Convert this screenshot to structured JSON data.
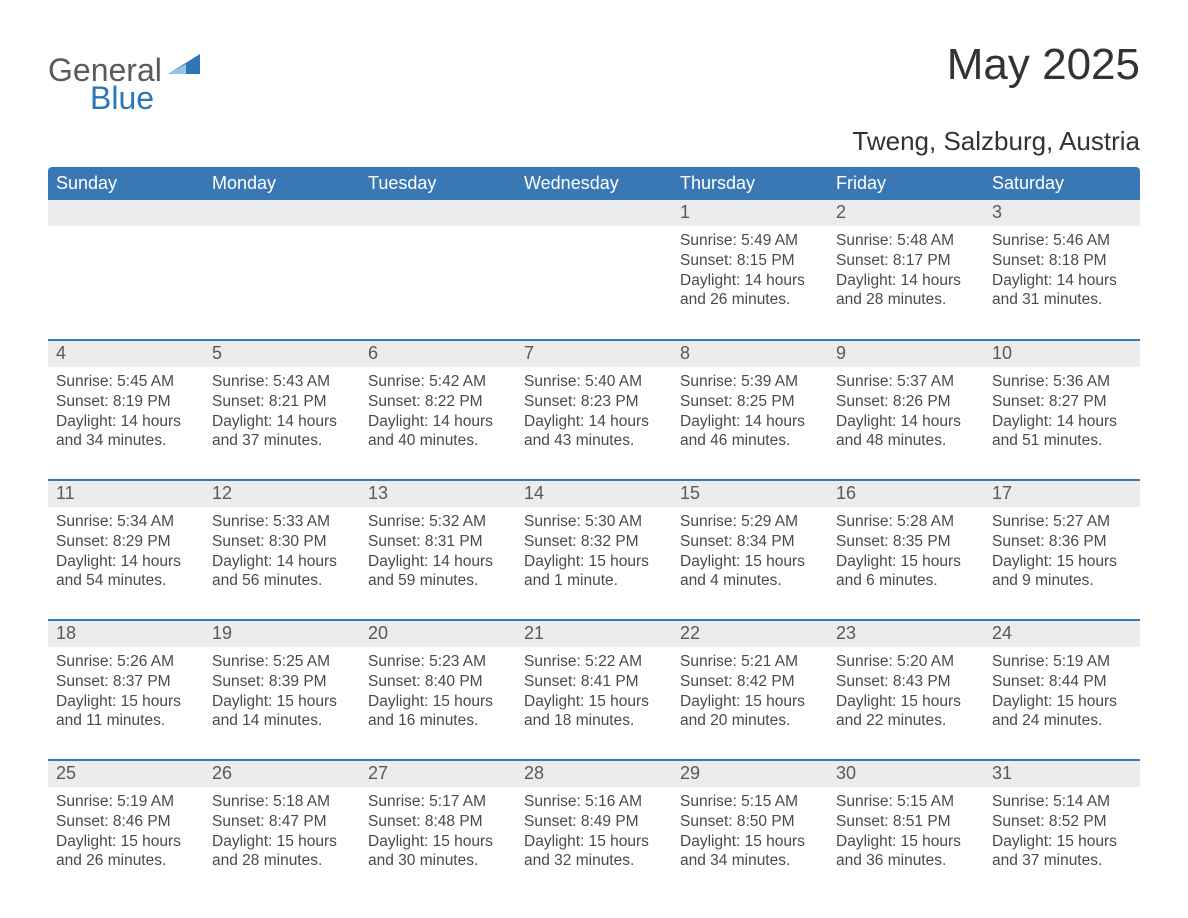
{
  "logo": {
    "general": "General",
    "blue": "Blue",
    "flag_color": "#2e75b6"
  },
  "title": "May 2025",
  "subtitle": "Tweng, Salzburg, Austria",
  "colors": {
    "header_bg": "#3a78b5",
    "header_fg": "#ffffff",
    "daynum_bg": "#ececec",
    "daynum_fg": "#595959",
    "text": "#4a4a4a",
    "rule": "#3a78b5"
  },
  "columns": [
    "Sunday",
    "Monday",
    "Tuesday",
    "Wednesday",
    "Thursday",
    "Friday",
    "Saturday"
  ],
  "weeks": [
    [
      {
        "blank": true
      },
      {
        "blank": true
      },
      {
        "blank": true
      },
      {
        "blank": true
      },
      {
        "day": "1",
        "sunrise": "Sunrise: 5:49 AM",
        "sunset": "Sunset: 8:15 PM",
        "daylight1": "Daylight: 14 hours",
        "daylight2": "and 26 minutes."
      },
      {
        "day": "2",
        "sunrise": "Sunrise: 5:48 AM",
        "sunset": "Sunset: 8:17 PM",
        "daylight1": "Daylight: 14 hours",
        "daylight2": "and 28 minutes."
      },
      {
        "day": "3",
        "sunrise": "Sunrise: 5:46 AM",
        "sunset": "Sunset: 8:18 PM",
        "daylight1": "Daylight: 14 hours",
        "daylight2": "and 31 minutes."
      }
    ],
    [
      {
        "day": "4",
        "sunrise": "Sunrise: 5:45 AM",
        "sunset": "Sunset: 8:19 PM",
        "daylight1": "Daylight: 14 hours",
        "daylight2": "and 34 minutes."
      },
      {
        "day": "5",
        "sunrise": "Sunrise: 5:43 AM",
        "sunset": "Sunset: 8:21 PM",
        "daylight1": "Daylight: 14 hours",
        "daylight2": "and 37 minutes."
      },
      {
        "day": "6",
        "sunrise": "Sunrise: 5:42 AM",
        "sunset": "Sunset: 8:22 PM",
        "daylight1": "Daylight: 14 hours",
        "daylight2": "and 40 minutes."
      },
      {
        "day": "7",
        "sunrise": "Sunrise: 5:40 AM",
        "sunset": "Sunset: 8:23 PM",
        "daylight1": "Daylight: 14 hours",
        "daylight2": "and 43 minutes."
      },
      {
        "day": "8",
        "sunrise": "Sunrise: 5:39 AM",
        "sunset": "Sunset: 8:25 PM",
        "daylight1": "Daylight: 14 hours",
        "daylight2": "and 46 minutes."
      },
      {
        "day": "9",
        "sunrise": "Sunrise: 5:37 AM",
        "sunset": "Sunset: 8:26 PM",
        "daylight1": "Daylight: 14 hours",
        "daylight2": "and 48 minutes."
      },
      {
        "day": "10",
        "sunrise": "Sunrise: 5:36 AM",
        "sunset": "Sunset: 8:27 PM",
        "daylight1": "Daylight: 14 hours",
        "daylight2": "and 51 minutes."
      }
    ],
    [
      {
        "day": "11",
        "sunrise": "Sunrise: 5:34 AM",
        "sunset": "Sunset: 8:29 PM",
        "daylight1": "Daylight: 14 hours",
        "daylight2": "and 54 minutes."
      },
      {
        "day": "12",
        "sunrise": "Sunrise: 5:33 AM",
        "sunset": "Sunset: 8:30 PM",
        "daylight1": "Daylight: 14 hours",
        "daylight2": "and 56 minutes."
      },
      {
        "day": "13",
        "sunrise": "Sunrise: 5:32 AM",
        "sunset": "Sunset: 8:31 PM",
        "daylight1": "Daylight: 14 hours",
        "daylight2": "and 59 minutes."
      },
      {
        "day": "14",
        "sunrise": "Sunrise: 5:30 AM",
        "sunset": "Sunset: 8:32 PM",
        "daylight1": "Daylight: 15 hours",
        "daylight2": "and 1 minute."
      },
      {
        "day": "15",
        "sunrise": "Sunrise: 5:29 AM",
        "sunset": "Sunset: 8:34 PM",
        "daylight1": "Daylight: 15 hours",
        "daylight2": "and 4 minutes."
      },
      {
        "day": "16",
        "sunrise": "Sunrise: 5:28 AM",
        "sunset": "Sunset: 8:35 PM",
        "daylight1": "Daylight: 15 hours",
        "daylight2": "and 6 minutes."
      },
      {
        "day": "17",
        "sunrise": "Sunrise: 5:27 AM",
        "sunset": "Sunset: 8:36 PM",
        "daylight1": "Daylight: 15 hours",
        "daylight2": "and 9 minutes."
      }
    ],
    [
      {
        "day": "18",
        "sunrise": "Sunrise: 5:26 AM",
        "sunset": "Sunset: 8:37 PM",
        "daylight1": "Daylight: 15 hours",
        "daylight2": "and 11 minutes."
      },
      {
        "day": "19",
        "sunrise": "Sunrise: 5:25 AM",
        "sunset": "Sunset: 8:39 PM",
        "daylight1": "Daylight: 15 hours",
        "daylight2": "and 14 minutes."
      },
      {
        "day": "20",
        "sunrise": "Sunrise: 5:23 AM",
        "sunset": "Sunset: 8:40 PM",
        "daylight1": "Daylight: 15 hours",
        "daylight2": "and 16 minutes."
      },
      {
        "day": "21",
        "sunrise": "Sunrise: 5:22 AM",
        "sunset": "Sunset: 8:41 PM",
        "daylight1": "Daylight: 15 hours",
        "daylight2": "and 18 minutes."
      },
      {
        "day": "22",
        "sunrise": "Sunrise: 5:21 AM",
        "sunset": "Sunset: 8:42 PM",
        "daylight1": "Daylight: 15 hours",
        "daylight2": "and 20 minutes."
      },
      {
        "day": "23",
        "sunrise": "Sunrise: 5:20 AM",
        "sunset": "Sunset: 8:43 PM",
        "daylight1": "Daylight: 15 hours",
        "daylight2": "and 22 minutes."
      },
      {
        "day": "24",
        "sunrise": "Sunrise: 5:19 AM",
        "sunset": "Sunset: 8:44 PM",
        "daylight1": "Daylight: 15 hours",
        "daylight2": "and 24 minutes."
      }
    ],
    [
      {
        "day": "25",
        "sunrise": "Sunrise: 5:19 AM",
        "sunset": "Sunset: 8:46 PM",
        "daylight1": "Daylight: 15 hours",
        "daylight2": "and 26 minutes."
      },
      {
        "day": "26",
        "sunrise": "Sunrise: 5:18 AM",
        "sunset": "Sunset: 8:47 PM",
        "daylight1": "Daylight: 15 hours",
        "daylight2": "and 28 minutes."
      },
      {
        "day": "27",
        "sunrise": "Sunrise: 5:17 AM",
        "sunset": "Sunset: 8:48 PM",
        "daylight1": "Daylight: 15 hours",
        "daylight2": "and 30 minutes."
      },
      {
        "day": "28",
        "sunrise": "Sunrise: 5:16 AM",
        "sunset": "Sunset: 8:49 PM",
        "daylight1": "Daylight: 15 hours",
        "daylight2": "and 32 minutes."
      },
      {
        "day": "29",
        "sunrise": "Sunrise: 5:15 AM",
        "sunset": "Sunset: 8:50 PM",
        "daylight1": "Daylight: 15 hours",
        "daylight2": "and 34 minutes."
      },
      {
        "day": "30",
        "sunrise": "Sunrise: 5:15 AM",
        "sunset": "Sunset: 8:51 PM",
        "daylight1": "Daylight: 15 hours",
        "daylight2": "and 36 minutes."
      },
      {
        "day": "31",
        "sunrise": "Sunrise: 5:14 AM",
        "sunset": "Sunset: 8:52 PM",
        "daylight1": "Daylight: 15 hours",
        "daylight2": "and 37 minutes."
      }
    ]
  ]
}
